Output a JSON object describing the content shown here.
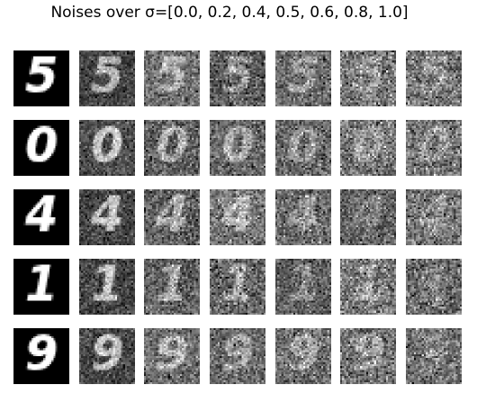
{
  "figure": {
    "title": "Noises over σ=[0.0, 0.2, 0.4, 0.5, 0.6, 0.8, 1.0]",
    "sigmas": [
      0.0,
      0.2,
      0.4,
      0.5,
      0.6,
      0.8,
      1.0
    ],
    "digits": [
      "5",
      "0",
      "4",
      "1",
      "9"
    ],
    "palette": "grayscale"
  }
}
